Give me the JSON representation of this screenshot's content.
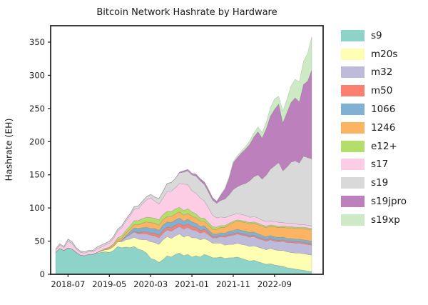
{
  "title": "Bitcoin Network Hashrate by Hardware",
  "ylabel": "Hashrate (EH)",
  "colors": {
    "background": "#ffffff",
    "frame": "#1a1a1a",
    "text": "#1a1a1a",
    "area_edge": "rgba(100,100,100,0.28)"
  },
  "chart_data": {
    "type": "area",
    "stacked": true,
    "grid": false,
    "legend_position": "right-outside",
    "xlabel": "",
    "ylabel": "Hashrate (EH)",
    "ylim": [
      0,
      375
    ],
    "yticks": [
      0,
      50,
      100,
      150,
      200,
      250,
      300,
      350
    ],
    "xticks": [
      "2018-07",
      "2019-05",
      "2020-03",
      "2021-01",
      "2021-11",
      "2022-09"
    ],
    "x": [
      "2018-04",
      "2018-05",
      "2018-06",
      "2018-07",
      "2018-08",
      "2018-09",
      "2018-10",
      "2018-11",
      "2018-12",
      "2019-01",
      "2019-02",
      "2019-03",
      "2019-04",
      "2019-05",
      "2019-06",
      "2019-07",
      "2019-08",
      "2019-09",
      "2019-10",
      "2019-11",
      "2019-12",
      "2020-01",
      "2020-02",
      "2020-03",
      "2020-04",
      "2020-05",
      "2020-06",
      "2020-07",
      "2020-08",
      "2020-09",
      "2020-10",
      "2020-11",
      "2020-12",
      "2021-01",
      "2021-02",
      "2021-03",
      "2021-04",
      "2021-05",
      "2021-06",
      "2021-07",
      "2021-08",
      "2021-09",
      "2021-10",
      "2021-11",
      "2021-12",
      "2022-01",
      "2022-02",
      "2022-03",
      "2022-04",
      "2022-05",
      "2022-06",
      "2022-07",
      "2022-08",
      "2022-09",
      "2022-10",
      "2022-11",
      "2022-12",
      "2023-01",
      "2023-02",
      "2023-03",
      "2023-04",
      "2023-05",
      "2023-06"
    ],
    "series": [
      {
        "name": "s9",
        "color": "#8dd3c7",
        "values": [
          33,
          39,
          36,
          40,
          38,
          33,
          29,
          28,
          30,
          30,
          32,
          33,
          34,
          33,
          36,
          42,
          40,
          41,
          40,
          42,
          38,
          36,
          32,
          24,
          22,
          18,
          22,
          28,
          26,
          30,
          32,
          28,
          30,
          26,
          28,
          26,
          30,
          28,
          25,
          25,
          26,
          24,
          25,
          25,
          26,
          24,
          22,
          20,
          21,
          19,
          17,
          15,
          16,
          14,
          13,
          12,
          10,
          9,
          8,
          7,
          6,
          5,
          4
        ]
      },
      {
        "name": "m20s",
        "color": "#ffffb3",
        "values": [
          0,
          0,
          0,
          0,
          0,
          0,
          0,
          0,
          0,
          0,
          1,
          2,
          3,
          5,
          6,
          7,
          9,
          11,
          13,
          14,
          15,
          16,
          20,
          25,
          26,
          27,
          30,
          29,
          28,
          28,
          29,
          28,
          29,
          29,
          27,
          26,
          24,
          23,
          22,
          22,
          21,
          20,
          20,
          20,
          21,
          21,
          22,
          22,
          22,
          22,
          22,
          22,
          23,
          23,
          23,
          24,
          24,
          24,
          24,
          25,
          25,
          25,
          25
        ]
      },
      {
        "name": "m32",
        "color": "#bebada",
        "values": [
          0,
          0,
          0,
          0,
          0,
          0,
          0,
          0,
          0,
          0,
          0,
          0,
          0,
          0,
          0,
          0,
          2,
          4,
          7,
          8,
          8,
          9,
          9,
          10,
          10,
          10,
          10,
          10,
          11,
          11,
          11,
          12,
          12,
          12,
          11,
          10,
          10,
          9,
          8,
          8,
          10,
          12,
          13,
          14,
          14,
          14,
          14,
          14,
          14,
          13,
          13,
          13,
          13,
          13,
          13,
          14,
          14,
          15,
          15,
          15,
          15,
          15,
          15
        ]
      },
      {
        "name": "m50",
        "color": "#fb8072",
        "values": [
          0,
          0,
          0,
          0,
          0,
          0,
          0,
          0,
          0,
          0,
          0,
          0,
          0,
          0,
          0,
          0,
          0,
          0,
          0,
          1,
          2,
          3,
          3,
          3,
          4,
          4,
          4,
          4,
          5,
          5,
          5,
          5,
          5,
          5,
          5,
          4,
          4,
          3,
          2,
          2,
          1.5,
          2,
          2,
          2,
          2,
          2,
          2,
          2,
          2,
          2,
          2,
          2,
          2,
          2,
          2,
          2,
          2,
          2,
          2,
          2,
          2,
          2,
          2
        ]
      },
      {
        "name": "1066",
        "color": "#80b1d3",
        "values": [
          0,
          0,
          0,
          0,
          0,
          0,
          0,
          0,
          0,
          0,
          0,
          0,
          0,
          0,
          0,
          0,
          0,
          2,
          4,
          5,
          6,
          6,
          7,
          7,
          7,
          7,
          8,
          8,
          8,
          8,
          8,
          7,
          7,
          7,
          6,
          6,
          5,
          4,
          4,
          3.5,
          4,
          4,
          5,
          5,
          5,
          5,
          5,
          5,
          5,
          5,
          4.5,
          4.5,
          4.5,
          4.5,
          4.5,
          4,
          4,
          4,
          4,
          4,
          4,
          4,
          4
        ]
      },
      {
        "name": "1246",
        "color": "#fdb462",
        "values": [
          0,
          0,
          0,
          0,
          0,
          0,
          0,
          0,
          0,
          0,
          0,
          1,
          1,
          2,
          2,
          3,
          3,
          4,
          4,
          5,
          6,
          7,
          8,
          9,
          8,
          8,
          8,
          8,
          9,
          9,
          9,
          9,
          9,
          8.5,
          8,
          8,
          7,
          7,
          7,
          7,
          8,
          9,
          10,
          12,
          12,
          13,
          13,
          13,
          13,
          14,
          14,
          14,
          14,
          15,
          15,
          15,
          16,
          16,
          16,
          16,
          17,
          17,
          17
        ]
      },
      {
        "name": "e12+",
        "color": "#b3de69",
        "values": [
          0,
          0,
          0,
          0,
          0,
          0,
          0,
          0,
          0,
          0,
          0,
          0,
          1,
          1,
          2,
          3,
          4,
          4,
          5,
          6,
          6,
          7,
          7,
          7.5,
          7.5,
          8,
          8,
          8,
          7.5,
          7.5,
          7,
          7,
          7,
          6.5,
          6,
          5,
          4.5,
          4,
          4,
          3.5,
          3,
          2.5,
          2,
          2,
          2,
          2,
          2,
          2,
          2,
          2,
          2,
          2,
          2,
          2,
          2,
          2,
          2,
          2,
          2,
          2,
          2,
          2,
          2
        ]
      },
      {
        "name": "s17",
        "color": "#fccde5",
        "values": [
          3,
          5,
          4,
          10,
          8,
          5,
          4,
          4,
          4,
          4,
          5,
          5,
          5,
          6,
          8,
          10,
          12,
          14,
          15,
          17,
          18,
          22,
          26,
          30,
          26,
          24,
          25,
          30,
          31,
          32,
          36,
          40,
          36,
          32,
          31,
          30,
          26,
          22,
          17,
          14,
          13,
          12,
          11,
          10,
          10,
          9,
          9,
          8,
          8,
          8,
          7,
          7,
          6,
          6,
          6,
          5,
          5,
          5,
          5,
          4,
          4,
          4,
          4
        ]
      },
      {
        "name": "s19",
        "color": "#d9d9d9",
        "values": [
          2,
          2,
          2,
          3,
          3,
          2,
          2,
          2,
          2,
          2,
          3,
          3,
          3,
          3,
          3,
          3,
          3,
          3,
          3,
          4,
          4,
          4,
          5,
          5,
          6,
          8,
          10,
          12,
          13,
          14,
          16,
          18,
          21,
          24,
          26,
          26,
          25,
          24,
          23,
          22,
          25,
          28,
          32,
          38,
          40,
          45,
          48,
          55,
          60,
          65,
          62,
          70,
          78,
          84,
          90,
          78,
          85,
          92,
          95,
          93,
          103,
          102,
          101
        ]
      },
      {
        "name": "s19jpro",
        "color": "#bc80bd",
        "values": [
          0,
          0,
          0,
          0,
          0,
          0,
          0,
          0,
          0,
          0,
          0,
          0,
          0,
          0,
          0,
          0,
          0,
          0,
          0,
          0,
          0,
          0,
          0,
          0,
          0,
          0,
          0,
          0,
          0,
          0,
          1,
          2,
          2,
          2,
          3,
          3,
          3.5,
          4,
          3.5,
          3,
          8,
          15,
          25,
          40,
          44,
          48,
          52,
          55,
          60,
          65,
          62,
          70,
          80,
          85,
          88,
          72,
          82,
          90,
          95,
          92,
          108,
          115,
          134
        ]
      },
      {
        "name": "s19xp",
        "color": "#ccebc5",
        "values": [
          0,
          0,
          0,
          0,
          0,
          0,
          0,
          0,
          0,
          0,
          0,
          0,
          0,
          0,
          0,
          0,
          0,
          0,
          0,
          0,
          0,
          0,
          0,
          0,
          0,
          0,
          0,
          0,
          0,
          0,
          0,
          0,
          0,
          0,
          0,
          0,
          0,
          0,
          0,
          0,
          1,
          1.5,
          2,
          2,
          3,
          3,
          4,
          5,
          6,
          7,
          8,
          10,
          13,
          16,
          12,
          18,
          20,
          25,
          28,
          30,
          35,
          42,
          50
        ]
      }
    ]
  }
}
